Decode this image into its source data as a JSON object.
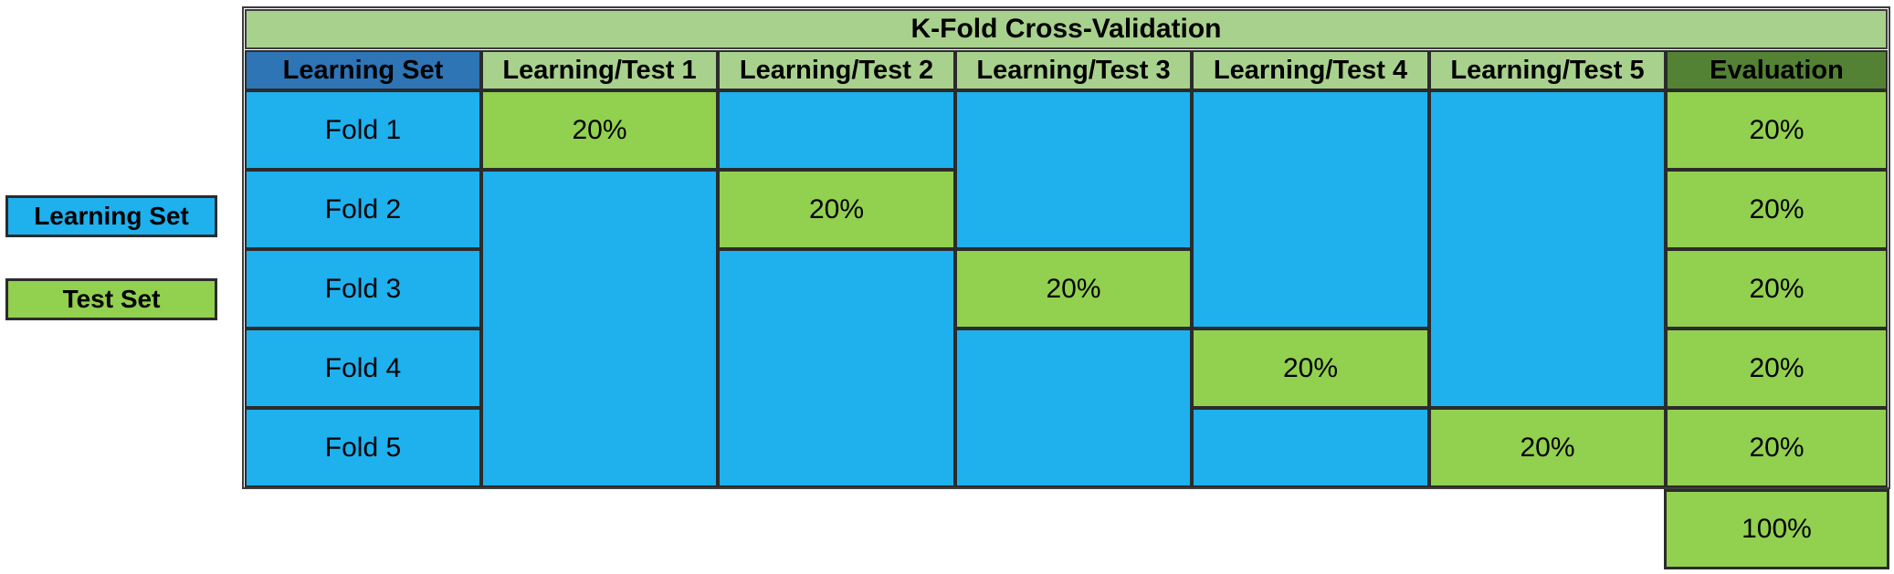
{
  "title": "K-Fold Cross-Validation",
  "headers": {
    "learning_set": "Learning  Set",
    "tests": [
      "Learning/Test 1",
      "Learning/Test 2",
      "Learning/Test 3",
      "Learning/Test 4",
      "Learning/Test 5"
    ],
    "evaluation": "Evaluation"
  },
  "folds": [
    "Fold 1",
    "Fold 2",
    "Fold 3",
    "Fold 4",
    "Fold 5"
  ],
  "test_cells": [
    "20%",
    "20%",
    "20%",
    "20%",
    "20%"
  ],
  "evaluation_values": [
    "20%",
    "20%",
    "20%",
    "20%",
    "20%"
  ],
  "evaluation_total": "100%",
  "legend": {
    "learning_set": "Learning Set",
    "test_set": "Test Set"
  },
  "colors": {
    "learning_set": "#1fb0ee",
    "test_set": "#92d050",
    "header": "#a9d18e",
    "header_learning": "#2e75b6",
    "header_evaluation": "#548235"
  }
}
